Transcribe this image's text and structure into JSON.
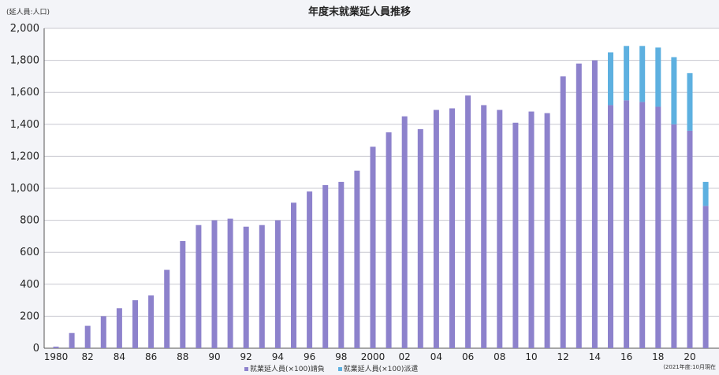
{
  "chart_data": {
    "type": "bar",
    "stacked": true,
    "title": "年度末就業延人員推移",
    "unit_label": "(延人員:人口)",
    "ylim": [
      0,
      2000
    ],
    "yticks": [
      "0",
      "200",
      "400",
      "600",
      "800",
      "1,000",
      "1,200",
      "1,400",
      "1,600",
      "1,800",
      "2,000"
    ],
    "x_tick_labels": [
      "1980",
      "82",
      "84",
      "86",
      "88",
      "90",
      "92",
      "94",
      "96",
      "98",
      "2000",
      "02",
      "04",
      "06",
      "08",
      "10",
      "12",
      "14",
      "16",
      "18",
      "20"
    ],
    "x": [
      1980,
      1981,
      1982,
      1983,
      1984,
      1985,
      1986,
      1987,
      1988,
      1989,
      1990,
      1991,
      1992,
      1993,
      1994,
      1995,
      1996,
      1997,
      1998,
      1999,
      2000,
      2001,
      2002,
      2003,
      2004,
      2005,
      2006,
      2007,
      2008,
      2009,
      2010,
      2011,
      2012,
      2013,
      2014,
      2015,
      2016,
      2017,
      2018,
      2019,
      2020,
      2021
    ],
    "series": [
      {
        "name": "就業延人員(×100)請負",
        "color": "#8d82cc",
        "values": [
          10,
          95,
          140,
          200,
          250,
          300,
          330,
          490,
          670,
          770,
          800,
          810,
          760,
          770,
          800,
          910,
          980,
          1020,
          1040,
          1110,
          1260,
          1350,
          1450,
          1370,
          1490,
          1500,
          1580,
          1520,
          1490,
          1410,
          1480,
          1470,
          1700,
          1780,
          1800,
          1520,
          1550,
          1540,
          1510,
          1400,
          1360,
          890
        ]
      },
      {
        "name": "就業延人員(×100)派遣",
        "color": "#5db0e0",
        "values": [
          0,
          0,
          0,
          0,
          0,
          0,
          0,
          0,
          0,
          0,
          0,
          0,
          0,
          0,
          0,
          0,
          0,
          0,
          0,
          0,
          0,
          0,
          0,
          0,
          0,
          0,
          0,
          0,
          0,
          0,
          0,
          0,
          0,
          0,
          0,
          330,
          340,
          350,
          370,
          420,
          360,
          150
        ]
      }
    ],
    "note": "(2021年度:10月現在",
    "grid": true,
    "legend_position": "bottom"
  }
}
